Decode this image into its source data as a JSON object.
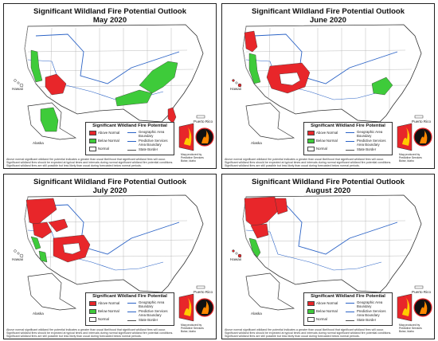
{
  "colors": {
    "above_normal": "#e8262a",
    "below_normal": "#3ecb3a",
    "normal": "#ffffff",
    "boundary": "#2b63c6",
    "state_border": "#555555",
    "land": "#ffffff"
  },
  "legend": {
    "title": "Significant Wildland Fire Potential",
    "above": "Above Normal",
    "below": "Below Normal",
    "normal": "Normal",
    "geo": "Geographic Area Boundary",
    "pred": "Predictive Services Area Boundary",
    "state": "State Border"
  },
  "labels": {
    "hawaii": "Hawaii",
    "alaska": "Alaska",
    "puerto_rico": "Puerto Rico"
  },
  "disclaimer": "Above normal significant wildland fire potential indicates a greater than usual likelihood that significant wildland fires will occur. Significant wildland fires should be expected at typical times and intervals during normal significant wildland fire potential conditions. Significant wildland fires are still possible but less likely than usual during forecasted below normal periods.",
  "badge_text": "PREDICTIVE SERVICES",
  "produced_lines": [
    "Map produced by",
    "Predictive Services",
    "National Interagency Fire Center",
    "Boise, Idaho",
    "Issued May 1, 2020",
    "Next issuance June 1, 2020"
  ],
  "panels": [
    {
      "title": "Significant Wildland Fire Potential Outlook",
      "month": "May 2020",
      "above_regions": [
        "southern-california",
        "south-florida"
      ],
      "below_regions": [
        "northern-california-coast",
        "southeast-appalachians",
        "gulf-coast",
        "south-alaska"
      ]
    },
    {
      "title": "Significant Wildland Fire Potential Outlook",
      "month": "June 2020",
      "above_regions": [
        "pacific-northwest-coast",
        "southwest-four-corners",
        "hawaii"
      ],
      "below_regions": [
        "northern-california-coast",
        "southeast-georgia"
      ]
    },
    {
      "title": "Significant Wildland Fire Potential Outlook",
      "month": "July 2020",
      "above_regions": [
        "pacific-northwest",
        "northern-california",
        "great-basin",
        "four-corners"
      ],
      "below_regions": [
        "california-coast",
        "southern-california-coast"
      ]
    },
    {
      "title": "Significant Wildland Fire Potential Outlook",
      "month": "August 2020",
      "above_regions": [
        "pacific-northwest",
        "northern-california",
        "northern-rockies",
        "hawaii"
      ],
      "below_regions": [
        "california-coast"
      ]
    }
  ]
}
